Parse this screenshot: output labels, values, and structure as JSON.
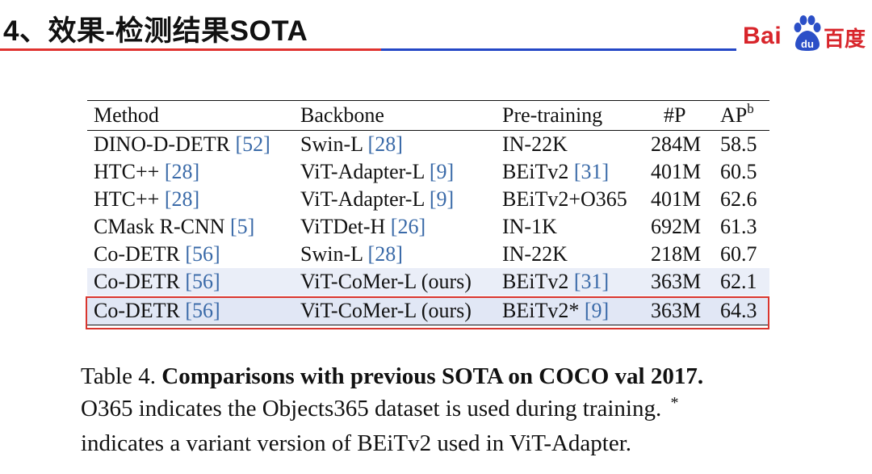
{
  "header": {
    "title": "4、效果-检测结果SOTA",
    "logo_bai": "Bai",
    "logo_du": "du",
    "logo_cn": "百度",
    "accent_red": "#e0322f",
    "accent_blue": "#2447c6"
  },
  "table": {
    "columns": [
      "Method",
      "Backbone",
      "Pre-training",
      "#P",
      "AP",
      "b"
    ],
    "rows": [
      {
        "method": "DINO-D-DETR",
        "method_ref": "[52]",
        "backbone": "Swin-L",
        "backbone_ref": "[28]",
        "pre": "IN-22K",
        "pre_ref": "",
        "params": "284M",
        "ap": "58.5"
      },
      {
        "method": "HTC++",
        "method_ref": "[28]",
        "backbone": "ViT-Adapter-L",
        "backbone_ref": "[9]",
        "pre": "BEiTv2",
        "pre_ref": "[31]",
        "params": "401M",
        "ap": "60.5"
      },
      {
        "method": "HTC++",
        "method_ref": "[28]",
        "backbone": "ViT-Adapter-L",
        "backbone_ref": "[9]",
        "pre": "BEiTv2+O365",
        "pre_ref": "",
        "params": "401M",
        "ap": "62.6"
      },
      {
        "method": "CMask R-CNN",
        "method_ref": "[5]",
        "backbone": "ViTDet-H",
        "backbone_ref": "[26]",
        "pre": "IN-1K",
        "pre_ref": "",
        "params": "692M",
        "ap": "61.3"
      },
      {
        "method": "Co-DETR",
        "method_ref": "[56]",
        "backbone": "Swin-L",
        "backbone_ref": "[28]",
        "pre": "IN-22K",
        "pre_ref": "",
        "params": "218M",
        "ap": "60.7"
      },
      {
        "method": "Co-DETR",
        "method_ref": "[56]",
        "backbone": "ViT-CoMer-L (ours)",
        "backbone_ref": "",
        "pre": "BEiTv2",
        "pre_ref": "[31]",
        "params": "363M",
        "ap": "62.1"
      },
      {
        "method": "Co-DETR",
        "method_ref": "[56]",
        "backbone": "ViT-CoMer-L (ours)",
        "backbone_ref": "",
        "pre": "BEiTv2*",
        "pre_ref": "[9]",
        "params": "363M",
        "ap": "64.3"
      }
    ]
  },
  "caption": {
    "label": "Table 4.",
    "bold": "Comparisons with previous SOTA on COCO val 2017.",
    "line2": "O365 indicates the Objects365 dataset is used during training.",
    "star": "*",
    "line3": "indicates a variant version of BEiTv2 used in ViT-Adapter."
  }
}
